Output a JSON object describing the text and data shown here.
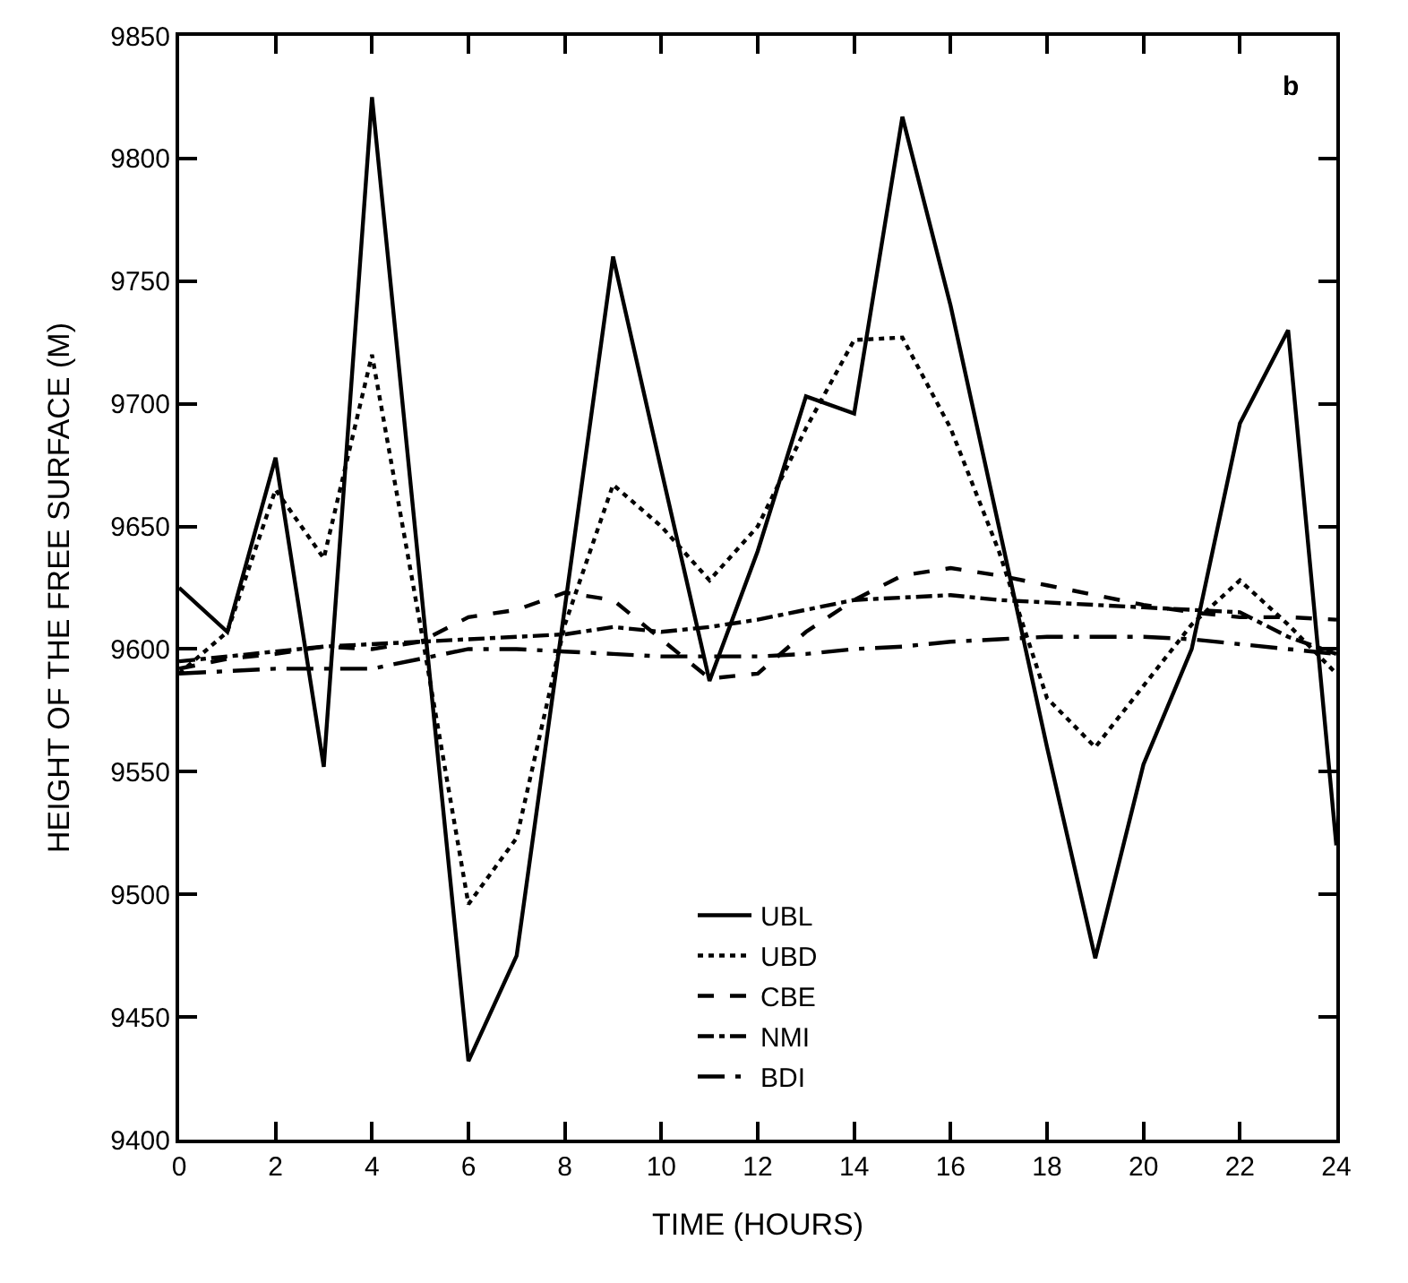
{
  "chart_data": {
    "type": "line",
    "xlabel": "TIME (HOURS)",
    "ylabel": "HEIGHT OF THE FREE SURFACE (M)",
    "annotations": [
      "b"
    ],
    "x": [
      0,
      1,
      2,
      3,
      4,
      5,
      6,
      7,
      8,
      9,
      10,
      11,
      12,
      13,
      14,
      15,
      16,
      17,
      18,
      19,
      20,
      21,
      22,
      23,
      24
    ],
    "xlim": [
      0,
      24
    ],
    "xticks": [
      0,
      2,
      4,
      6,
      8,
      10,
      12,
      14,
      16,
      18,
      20,
      22,
      24
    ],
    "ylim": [
      9400,
      9850
    ],
    "yticks": [
      9400,
      9450,
      9500,
      9550,
      9600,
      9650,
      9700,
      9750,
      9800,
      9850
    ],
    "grid": false,
    "legend": "bottom",
    "marker": "none",
    "series": [
      {
        "name": "UBL",
        "color": "#000000",
        "line_style": "solid",
        "values": [
          9625,
          9607,
          9678,
          9552,
          9825,
          9628,
          9432,
          9475,
          9617,
          9760,
          9673,
          9587,
          9640,
          9703,
          9696,
          9817,
          9740,
          9650,
          9560,
          9474,
          9553,
          9600,
          9692,
          9730,
          9520
        ]
      },
      {
        "name": "UBD",
        "color": "#000000",
        "line_style": "dotted",
        "values": [
          9590,
          9607,
          9665,
          9637,
          9720,
          9610,
          9496,
          9523,
          9610,
          9667,
          9650,
          9628,
          9650,
          9690,
          9726,
          9727,
          9690,
          9640,
          9580,
          9560,
          9585,
          9610,
          9628,
          9610,
          9590
        ]
      },
      {
        "name": "CBE",
        "color": "#000000",
        "line_style": "dashed",
        "values": [
          9592,
          9596,
          9598,
          9601,
          9600,
          9603,
          9613,
          9616,
          9623,
          9620,
          9604,
          9588,
          9590,
          9607,
          9620,
          9630,
          9633,
          9630,
          9626,
          9622,
          9618,
          9615,
          9613,
          9613,
          9612
        ]
      },
      {
        "name": "NMI",
        "color": "#000000",
        "line_style": "dashdot",
        "values": [
          9595,
          9597,
          9599,
          9601,
          9602,
          9603,
          9604,
          9605,
          9606,
          9609,
          9607,
          9609,
          9612,
          9616,
          9620,
          9621,
          9622,
          9620,
          9619,
          9618,
          9617,
          9616,
          9615,
          9605,
          9598
        ]
      },
      {
        "name": "BDI",
        "color": "#000000",
        "line_style": "longdashdot",
        "values": [
          9590,
          9591,
          9592,
          9592,
          9592,
          9596,
          9600,
          9600,
          9599,
          9598,
          9597,
          9597,
          9597,
          9598,
          9600,
          9601,
          9603,
          9604,
          9605,
          9605,
          9605,
          9604,
          9602,
          9600,
          9598
        ]
      }
    ]
  }
}
